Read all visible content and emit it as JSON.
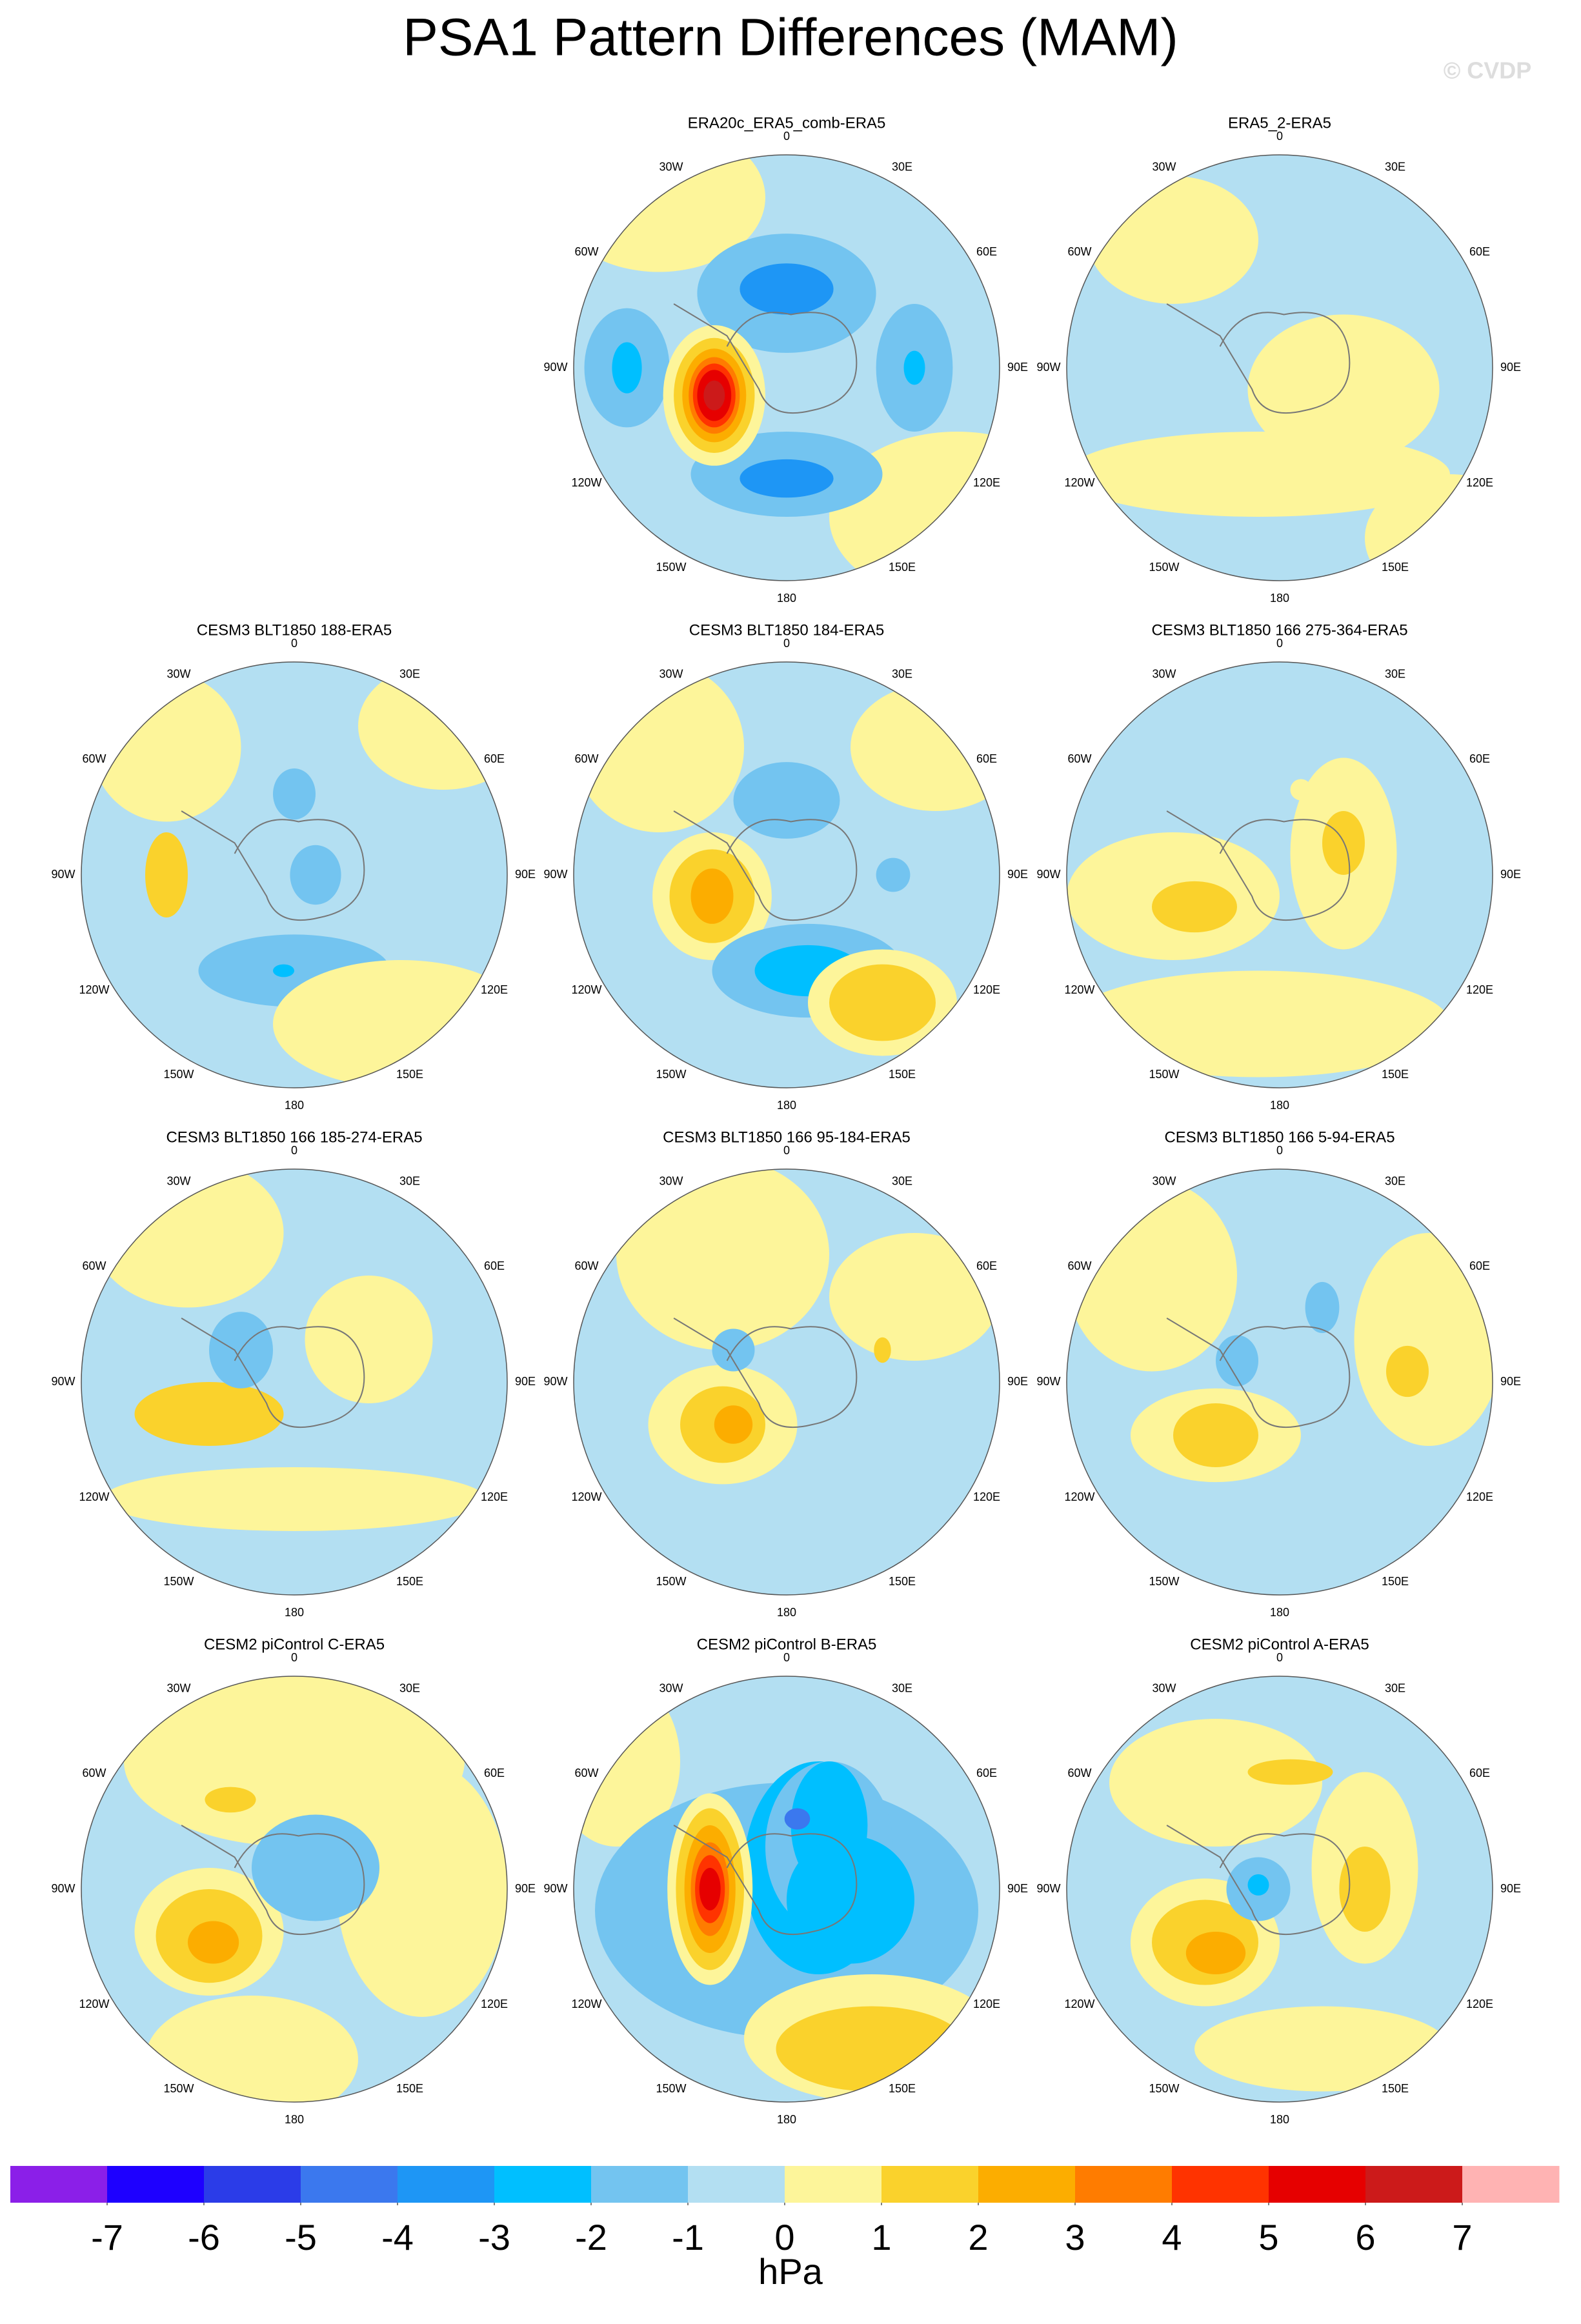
{
  "header": {
    "title": "PSA1 Pattern Differences (MAM)",
    "watermark": "© CVDP"
  },
  "lon_labels": [
    "0",
    "30E",
    "60E",
    "90E",
    "120E",
    "150E",
    "180",
    "150W",
    "120W",
    "90W",
    "60W",
    "30W"
  ],
  "panels": [
    {
      "title": "ERA20c_ERA5_comb-ERA5"
    },
    {
      "title": "ERA5_2-ERA5"
    },
    {
      "title": "CESM3 BLT1850 188-ERA5"
    },
    {
      "title": "CESM3 BLT1850 184-ERA5"
    },
    {
      "title": "CESM3 BLT1850 166 275-364-ERA5"
    },
    {
      "title": "CESM3 BLT1850 166 185-274-ERA5"
    },
    {
      "title": "CESM3 BLT1850 166 95-184-ERA5"
    },
    {
      "title": "CESM3 BLT1850 166 5-94-ERA5"
    },
    {
      "title": "CESM2 piControl C-ERA5"
    },
    {
      "title": "CESM2 piControl B-ERA5"
    },
    {
      "title": "CESM2 piControl A-ERA5"
    }
  ],
  "colorbar": {
    "levels": [
      -7,
      -6,
      -5,
      -4,
      -3,
      -2,
      -1,
      0,
      1,
      2,
      3,
      4,
      5,
      6,
      7
    ],
    "colors": [
      "#8b1fe8",
      "#1e00ff",
      "#2b3ce8",
      "#3b78ee",
      "#1e96f5",
      "#00bfff",
      "#73c4f0",
      "#b3dff2",
      "#fdf59a",
      "#fad22c",
      "#fcad00",
      "#ff7c00",
      "#ff3300",
      "#e60000",
      "#cc1a1a",
      "#ffb3b3"
    ],
    "unit": "hPa"
  }
}
